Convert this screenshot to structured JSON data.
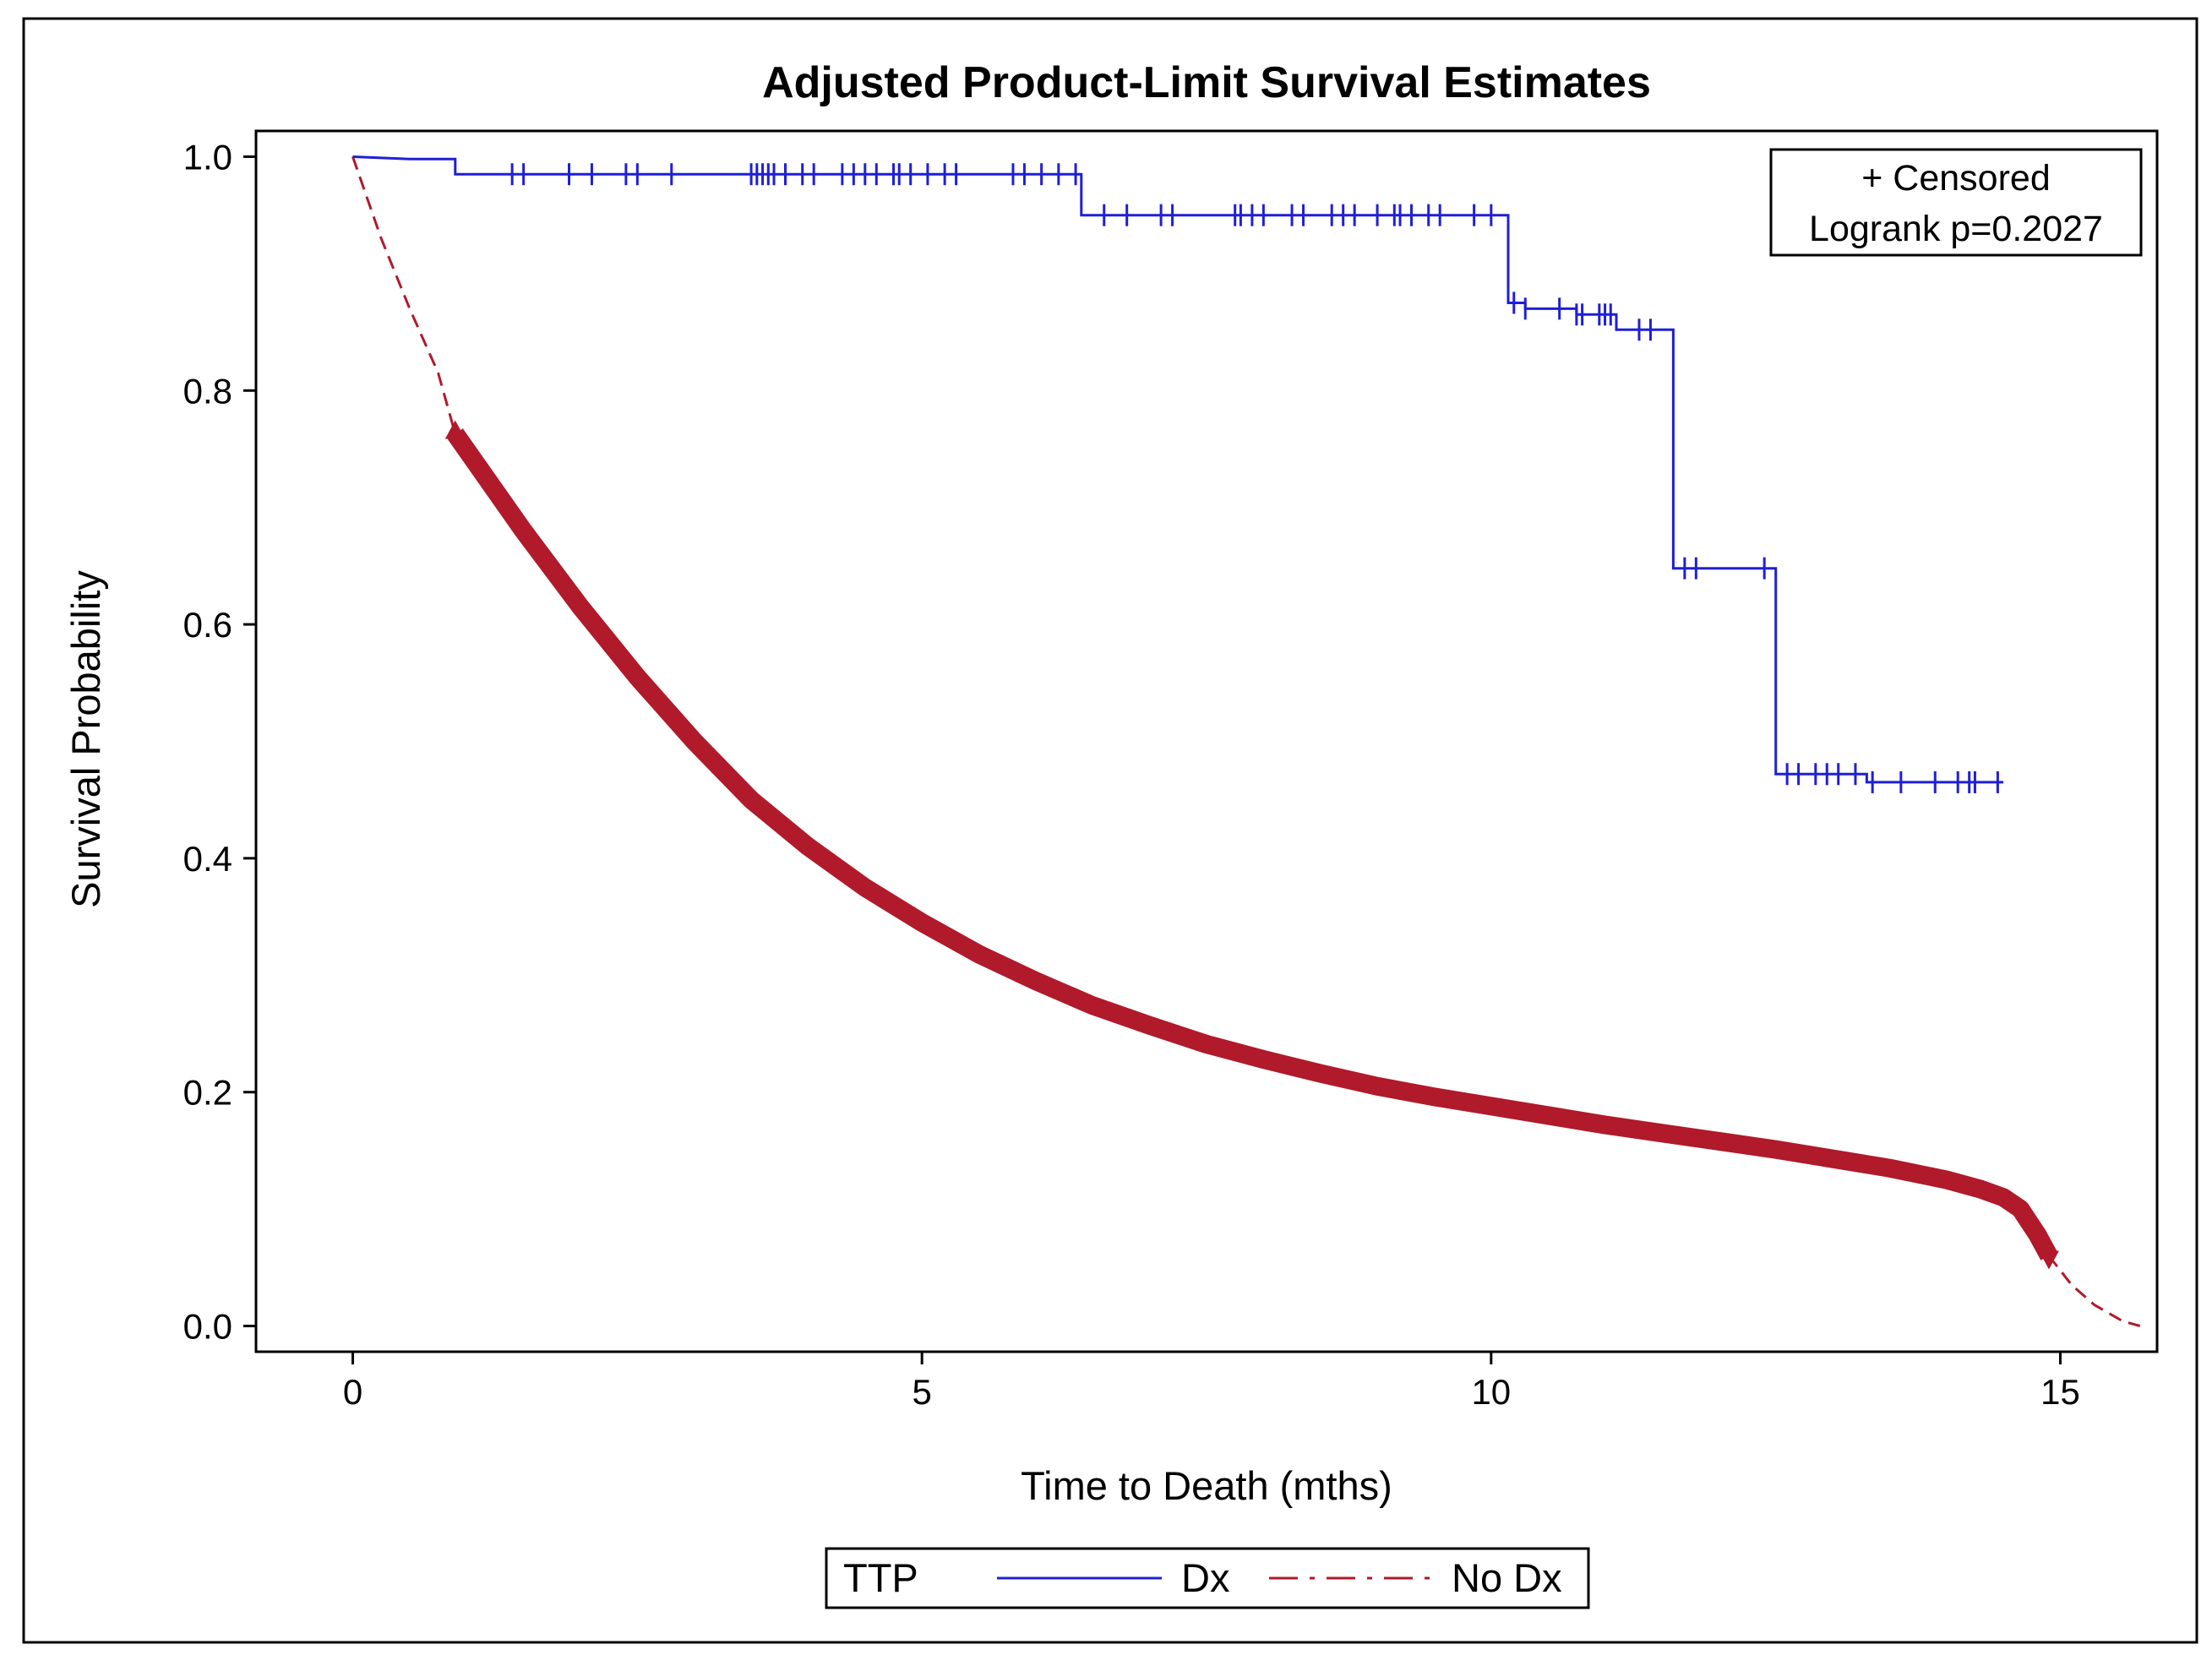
{
  "chart_data": {
    "type": "line",
    "subtype": "kaplan-meier survival curves",
    "title": "Adjusted Product-Limit Survival Estimates",
    "xlabel": "Time to Death (mths)",
    "ylabel": "Survival Probability",
    "xlim": [
      -0.85,
      15.85
    ],
    "ylim": [
      -0.022,
      1.022
    ],
    "xticks": [
      0,
      5,
      10,
      15
    ],
    "xtick_labels": [
      "0",
      "5",
      "10",
      "15"
    ],
    "yticks": [
      0.0,
      0.2,
      0.4,
      0.6,
      0.8,
      1.0
    ],
    "ytick_labels": [
      "0.0",
      "0.2",
      "0.4",
      "0.6",
      "0.8",
      "1.0"
    ],
    "grid": false,
    "inset": {
      "censored_label": "+ Censored",
      "logrank_label": "Logrank p=0.2027",
      "placement": "top-right"
    },
    "legend": {
      "title": "TTP",
      "placement": "bottom-outside",
      "entries": [
        {
          "label": "Dx",
          "style": "solid",
          "color": "#1f1fd6"
        },
        {
          "label": "No Dx",
          "style": "dashed",
          "color": "#b01a2a"
        }
      ]
    },
    "series": [
      {
        "name": "Dx",
        "color": "#1f1fd6",
        "step": true,
        "points": [
          [
            0,
            1.0
          ],
          [
            0.5,
            0.998
          ],
          [
            0.9,
            0.998
          ],
          [
            0.9,
            0.985
          ],
          [
            6.4,
            0.985
          ],
          [
            6.4,
            0.95
          ],
          [
            10.15,
            0.95
          ],
          [
            10.15,
            0.875
          ],
          [
            10.3,
            0.875
          ],
          [
            10.3,
            0.87
          ],
          [
            10.75,
            0.87
          ],
          [
            10.75,
            0.865
          ],
          [
            11.1,
            0.865
          ],
          [
            11.1,
            0.852
          ],
          [
            11.6,
            0.852
          ],
          [
            11.6,
            0.648
          ],
          [
            12.5,
            0.648
          ],
          [
            12.5,
            0.472
          ],
          [
            13.3,
            0.472
          ],
          [
            13.3,
            0.465
          ],
          [
            14.5,
            0.465
          ]
        ],
        "censored_times": [
          1.4,
          1.5,
          1.9,
          2.1,
          2.4,
          2.5,
          2.8,
          3.5,
          3.55,
          3.6,
          3.65,
          3.7,
          3.8,
          3.95,
          4.05,
          4.3,
          4.4,
          4.5,
          4.6,
          4.75,
          4.8,
          4.9,
          5.05,
          5.2,
          5.3,
          5.8,
          5.9,
          6.05,
          6.2,
          6.35,
          6.6,
          6.8,
          7.1,
          7.2,
          7.75,
          7.8,
          7.9,
          8.0,
          8.25,
          8.35,
          8.6,
          8.7,
          8.8,
          9.0,
          9.15,
          9.2,
          9.3,
          9.45,
          9.55,
          9.85,
          10.0,
          10.2,
          10.3,
          10.6,
          10.75,
          10.8,
          10.95,
          11.0,
          11.05,
          11.3,
          11.4,
          11.7,
          11.8,
          12.4,
          12.6,
          12.7,
          12.85,
          12.95,
          13.05,
          13.2,
          13.35,
          13.6,
          13.9,
          14.1,
          14.2,
          14.25,
          14.45
        ]
      },
      {
        "name": "No Dx",
        "color": "#b01a2a",
        "dash_before": 0.9,
        "dash_after": 14.9,
        "points": [
          [
            0,
            1.0
          ],
          [
            0.25,
            0.93
          ],
          [
            0.5,
            0.87
          ],
          [
            0.75,
            0.815
          ],
          [
            0.9,
            0.763
          ],
          [
            1.5,
            0.68
          ],
          [
            2.0,
            0.615
          ],
          [
            2.5,
            0.555
          ],
          [
            3.0,
            0.5
          ],
          [
            3.5,
            0.45
          ],
          [
            4.0,
            0.41
          ],
          [
            4.5,
            0.375
          ],
          [
            5.0,
            0.345
          ],
          [
            5.5,
            0.318
          ],
          [
            6.0,
            0.295
          ],
          [
            6.5,
            0.274
          ],
          [
            7.0,
            0.257
          ],
          [
            7.5,
            0.241
          ],
          [
            8.0,
            0.228
          ],
          [
            8.5,
            0.216
          ],
          [
            9.0,
            0.205
          ],
          [
            9.5,
            0.196
          ],
          [
            10.0,
            0.188
          ],
          [
            10.5,
            0.18
          ],
          [
            11.0,
            0.172
          ],
          [
            11.5,
            0.165
          ],
          [
            12.0,
            0.158
          ],
          [
            12.5,
            0.151
          ],
          [
            13.0,
            0.143
          ],
          [
            13.5,
            0.135
          ],
          [
            14.0,
            0.125
          ],
          [
            14.3,
            0.117
          ],
          [
            14.5,
            0.11
          ],
          [
            14.65,
            0.1
          ],
          [
            14.8,
            0.078
          ],
          [
            14.9,
            0.06
          ],
          [
            15.1,
            0.035
          ],
          [
            15.3,
            0.018
          ],
          [
            15.55,
            0.004
          ],
          [
            15.7,
            0.0
          ]
        ]
      }
    ]
  }
}
